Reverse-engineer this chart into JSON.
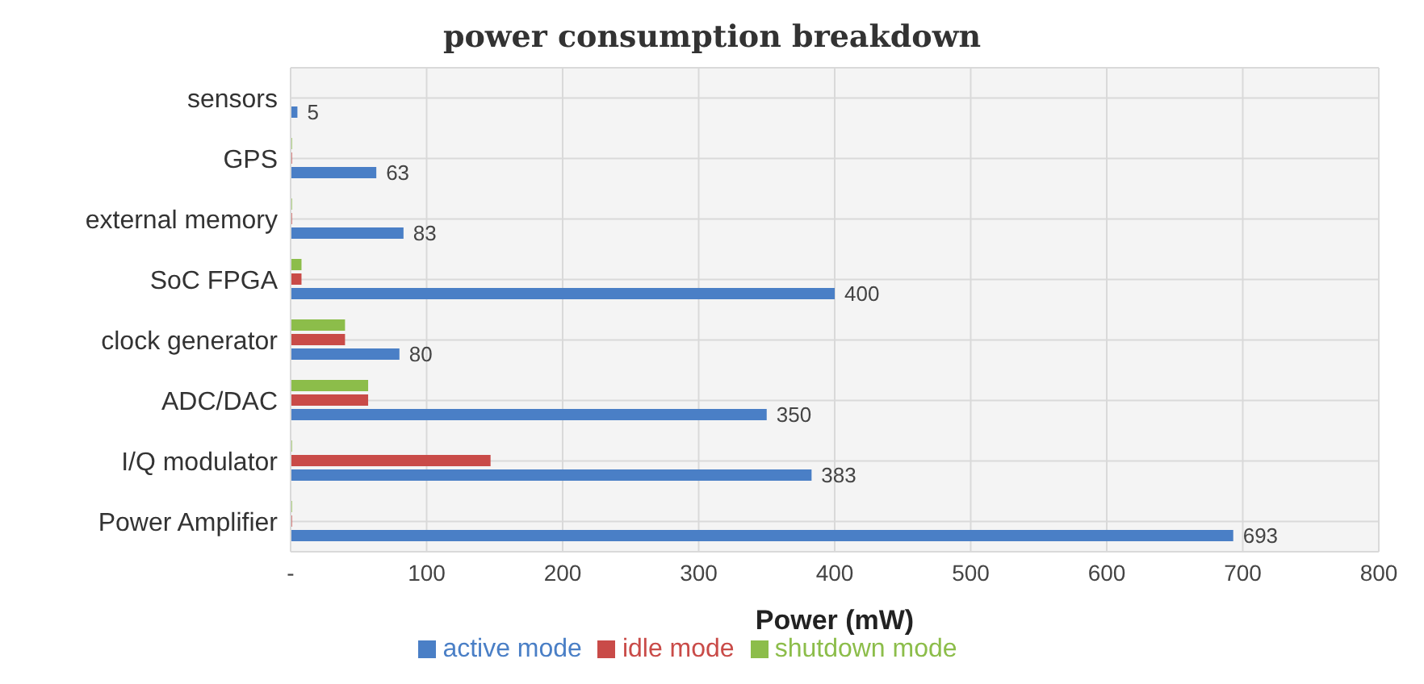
{
  "chart_data": {
    "type": "bar",
    "orientation": "horizontal",
    "title": "power consumption breakdown",
    "xlabel": "Power (mW)",
    "categories": [
      "sensors",
      "GPS",
      "external memory",
      "SoC FPGA",
      "clock generator",
      "ADC/DAC",
      "I/Q modulator",
      "Power Amplifier"
    ],
    "series": [
      {
        "name": "shutdown mode",
        "color": "#8cbd4a",
        "values": [
          0,
          1,
          1,
          8,
          40,
          57,
          1,
          1
        ]
      },
      {
        "name": "idle mode",
        "color": "#c94b48",
        "values": [
          0,
          1,
          1,
          8,
          40,
          57,
          147,
          1
        ]
      },
      {
        "name": "active mode",
        "color": "#4a7fc6",
        "values": [
          5,
          63,
          83,
          400,
          80,
          350,
          383,
          693
        ],
        "value_labels": [
          "5",
          "63",
          "83",
          "400",
          "80",
          "350",
          "383",
          "693"
        ]
      }
    ],
    "xlim": [
      0,
      800
    ],
    "xticks": [
      {
        "value": 0,
        "label": "-"
      },
      100,
      200,
      300,
      400,
      500,
      600,
      700,
      800
    ],
    "grid": true,
    "legend": "bottom"
  }
}
